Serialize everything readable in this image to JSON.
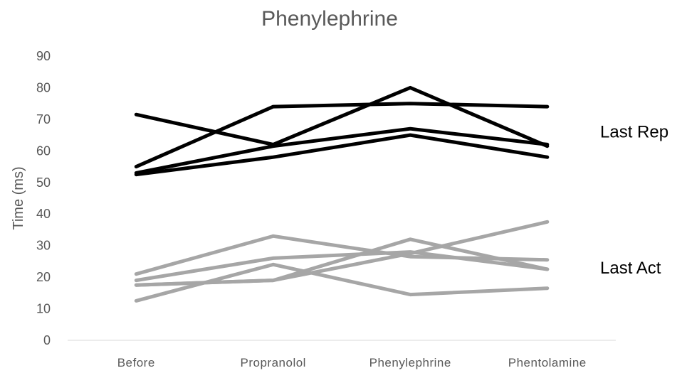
{
  "chart_data": {
    "type": "line",
    "title": "Phenylephrine",
    "xlabel": "",
    "ylabel": "Time (ms)",
    "categories": [
      "Before",
      "Propranolol",
      "Phenylephrine",
      "Phentolamine"
    ],
    "ylim": [
      0,
      90
    ],
    "yticks": [
      0,
      10,
      20,
      30,
      40,
      50,
      60,
      70,
      80,
      90
    ],
    "grid": false,
    "legend": "none",
    "annotations": [
      {
        "text": "Last Rep",
        "near_value": 66
      },
      {
        "text": "Last Act",
        "near_value": 23
      }
    ],
    "series": [
      {
        "group": "Last Rep",
        "color": "#000000",
        "values": [
          71.5,
          62,
          80,
          61.5
        ]
      },
      {
        "group": "Last Rep",
        "color": "#000000",
        "values": [
          55,
          74,
          75,
          74
        ]
      },
      {
        "group": "Last Rep",
        "color": "#000000",
        "values": [
          53,
          61.5,
          67,
          62
        ]
      },
      {
        "group": "Last Rep",
        "color": "#000000",
        "values": [
          52.5,
          58,
          65,
          58
        ]
      },
      {
        "group": "Last Act",
        "color": "#a6a6a6",
        "values": [
          21,
          33,
          26.5,
          25.5
        ]
      },
      {
        "group": "Last Act",
        "color": "#a6a6a6",
        "values": [
          19,
          26,
          28,
          22.5
        ]
      },
      {
        "group": "Last Act",
        "color": "#a6a6a6",
        "values": [
          17.5,
          19,
          32,
          22.5
        ]
      },
      {
        "group": "Last Act",
        "color": "#a6a6a6",
        "values": [
          12.5,
          24,
          14.5,
          16.5
        ]
      },
      {
        "group": "Last Act",
        "color": "#a6a6a6",
        "values": [
          17.5,
          19,
          27.5,
          37.5
        ]
      }
    ]
  }
}
